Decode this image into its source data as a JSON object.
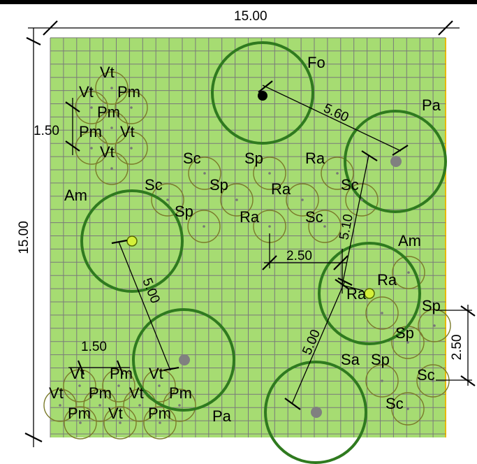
{
  "dimensions": {
    "width_label": "15.00",
    "height_label": "15.00",
    "spacing_top_left": "1.50",
    "spacing_bottom_left": "1.50",
    "right_spacing": "2.50",
    "distance_ra_label": "2.50",
    "distance_fo_pa": "5.60",
    "distance_pa_am": "5.10",
    "distance_am_pa_left": "5.00",
    "distance_am_pa_bottom": "5.00"
  },
  "plant_labels": {
    "fo": "Fo",
    "pa": "Pa",
    "am": "Am",
    "sc": "Sc",
    "sp": "Sp",
    "ra": "Ra",
    "vt": "Vt",
    "pm": "Pm",
    "sa": "Sa"
  },
  "colors": {
    "bed_fill": "#a6dc72",
    "grid_line": "#7a7a7a",
    "tree_ring": "#2f7a1f",
    "shrub_ring": "#7a7a2a",
    "trunk_grey": "#808080",
    "trunk_lime": "#d4f03a"
  }
}
